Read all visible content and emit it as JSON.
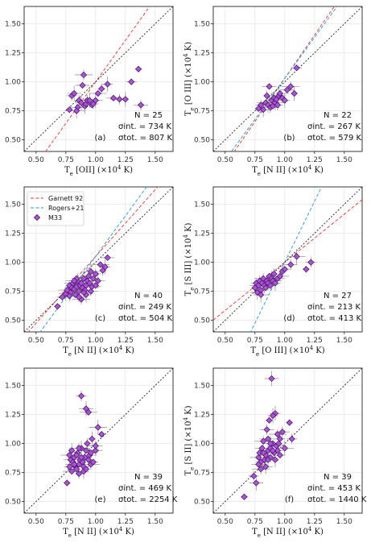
{
  "chart_data": [
    {
      "type": "scatter",
      "panel_label": "(a)",
      "xlabel": "T_e [OII] (×10^4 K)",
      "ylabel": "",
      "xlim": [
        0.4,
        1.65
      ],
      "ylim": [
        0.4,
        1.65
      ],
      "xticks": [
        "0.50",
        "0.75",
        "1.00",
        "1.25",
        "1.50"
      ],
      "yticks": [
        "0.50",
        "0.75",
        "1.00",
        "1.25",
        "1.50"
      ],
      "grid": true,
      "stats": {
        "n": "N = 25",
        "sigma_int": "σint. = 734 K",
        "sigma_tot": "σtot. = 807 K"
      },
      "relations": [
        {
          "name": "Garnett 92",
          "slope": 1.43,
          "intercept": -0.43,
          "color": "#e8372c"
        },
        {
          "name": "one-to-one",
          "slope": 1.0,
          "intercept": 0.0,
          "color": "#222222"
        }
      ],
      "series": [
        {
          "name": "M33",
          "points": [
            [
              0.78,
              0.76
            ],
            [
              0.8,
              0.88
            ],
            [
              0.82,
              0.9
            ],
            [
              0.85,
              0.78
            ],
            [
              0.86,
              0.84
            ],
            [
              0.88,
              0.82
            ],
            [
              0.89,
              0.97
            ],
            [
              0.9,
              1.06
            ],
            [
              0.91,
              0.79
            ],
            [
              0.92,
              0.81
            ],
            [
              0.93,
              0.84
            ],
            [
              0.95,
              0.84
            ],
            [
              0.97,
              0.8
            ],
            [
              0.98,
              0.81
            ],
            [
              1.0,
              0.84
            ],
            [
              1.02,
              0.9
            ],
            [
              1.05,
              0.94
            ],
            [
              1.1,
              0.98
            ],
            [
              1.15,
              0.86
            ],
            [
              1.2,
              0.85
            ],
            [
              1.25,
              0.85
            ],
            [
              1.3,
              1.0
            ],
            [
              1.38,
              0.8
            ],
            [
              0.84,
              0.75
            ],
            [
              1.36,
              1.11
            ]
          ]
        }
      ]
    },
    {
      "type": "scatter",
      "panel_label": "(b)",
      "xlabel": "T_e [N II] (×10^4 K)",
      "ylabel": "T_e [O III] (×10^4 K)",
      "xlim": [
        0.4,
        1.65
      ],
      "ylim": [
        0.4,
        1.65
      ],
      "xticks": [
        "0.50",
        "0.75",
        "1.00",
        "1.25",
        "1.50"
      ],
      "yticks": [
        "0.50",
        "0.75",
        "1.00",
        "1.25",
        "1.50"
      ],
      "grid": true,
      "stats": {
        "n": "N = 22",
        "sigma_int": "σint. = 267 K",
        "sigma_tot": "σtot. = 579 K"
      },
      "relations": [
        {
          "name": "Garnett 92",
          "slope": 1.49,
          "intercept": -0.46,
          "color": "#e8372c"
        },
        {
          "name": "Rogers+21",
          "slope": 1.41,
          "intercept": -0.38,
          "color": "#2b8fe6"
        },
        {
          "name": "one-to-one",
          "slope": 1.0,
          "intercept": 0.0,
          "color": "#222222"
        }
      ],
      "series": [
        {
          "name": "M33",
          "points": [
            [
              0.78,
              0.77
            ],
            [
              0.8,
              0.8
            ],
            [
              0.82,
              0.76
            ],
            [
              0.84,
              0.82
            ],
            [
              0.85,
              0.88
            ],
            [
              0.86,
              0.8
            ],
            [
              0.87,
              0.96
            ],
            [
              0.88,
              0.78
            ],
            [
              0.89,
              0.84
            ],
            [
              0.9,
              0.79
            ],
            [
              0.91,
              0.86
            ],
            [
              0.92,
              0.82
            ],
            [
              0.93,
              0.85
            ],
            [
              0.94,
              0.8
            ],
            [
              0.95,
              0.88
            ],
            [
              0.96,
              0.9
            ],
            [
              0.98,
              0.86
            ],
            [
              1.0,
              0.84
            ],
            [
              1.02,
              0.93
            ],
            [
              1.05,
              0.96
            ],
            [
              1.08,
              0.9
            ],
            [
              1.1,
              1.12
            ]
          ]
        }
      ]
    },
    {
      "type": "scatter",
      "panel_label": "(c)",
      "xlabel": "T_e [N II] (×10^4 K)",
      "ylabel": "",
      "xlim": [
        0.4,
        1.65
      ],
      "ylim": [
        0.4,
        1.65
      ],
      "xticks": [
        "0.50",
        "0.75",
        "1.00",
        "1.25",
        "1.50"
      ],
      "yticks": [
        "0.50",
        "0.75",
        "1.00",
        "1.25",
        "1.50"
      ],
      "grid": true,
      "legend": [
        "Garnett 92",
        "Rogers+21",
        "M33"
      ],
      "legend_position": "top-left",
      "stats": {
        "n": "N = 40",
        "sigma_int": "σint. = 249 K",
        "sigma_tot": "σtot. = 504 K"
      },
      "relations": [
        {
          "name": "Garnett 92",
          "slope": 1.15,
          "intercept": -0.1,
          "color": "#e8372c"
        },
        {
          "name": "Rogers+21",
          "slope": 1.4,
          "intercept": -0.35,
          "color": "#2b8fe6"
        },
        {
          "name": "one-to-one",
          "slope": 1.0,
          "intercept": 0.0,
          "color": "#222222"
        }
      ],
      "series": [
        {
          "name": "M33",
          "points": [
            [
              0.68,
              0.62
            ],
            [
              0.72,
              0.7
            ],
            [
              0.75,
              0.73
            ],
            [
              0.76,
              0.76
            ],
            [
              0.78,
              0.8
            ],
            [
              0.79,
              0.74
            ],
            [
              0.8,
              0.78
            ],
            [
              0.81,
              0.82
            ],
            [
              0.82,
              0.77
            ],
            [
              0.83,
              0.72
            ],
            [
              0.84,
              0.79
            ],
            [
              0.85,
              0.84
            ],
            [
              0.86,
              0.75
            ],
            [
              0.87,
              0.8
            ],
            [
              0.88,
              0.82
            ],
            [
              0.89,
              0.78
            ],
            [
              0.9,
              0.86
            ],
            [
              0.91,
              0.76
            ],
            [
              0.92,
              0.8
            ],
            [
              0.93,
              0.84
            ],
            [
              0.94,
              0.88
            ],
            [
              0.95,
              0.82
            ],
            [
              0.96,
              0.75
            ],
            [
              0.97,
              0.79
            ],
            [
              0.98,
              0.86
            ],
            [
              1.0,
              0.9
            ],
            [
              1.02,
              0.84
            ],
            [
              1.04,
              0.98
            ],
            [
              1.06,
              0.93
            ],
            [
              1.08,
              0.96
            ],
            [
              1.1,
              1.04
            ],
            [
              0.88,
              0.68
            ],
            [
              0.92,
              0.72
            ],
            [
              0.84,
              0.86
            ],
            [
              0.78,
              0.71
            ],
            [
              0.96,
              0.92
            ],
            [
              1.0,
              0.8
            ],
            [
              0.86,
              0.7
            ],
            [
              0.9,
              0.74
            ],
            [
              0.82,
              0.84
            ]
          ]
        }
      ]
    },
    {
      "type": "scatter",
      "panel_label": "(d)",
      "xlabel": "T_e [O III] (×10^4 K)",
      "ylabel": "T_e [S III] (×10^4 K)",
      "xlim": [
        0.4,
        1.65
      ],
      "ylim": [
        0.4,
        1.65
      ],
      "xticks": [
        "0.50",
        "0.75",
        "1.00",
        "1.25",
        "1.50"
      ],
      "yticks": [
        "0.50",
        "0.75",
        "1.00",
        "1.25",
        "1.50"
      ],
      "grid": true,
      "stats": {
        "n": "N = 27",
        "sigma_int": "σint. = 213 K",
        "sigma_tot": "σtot. = 413 K"
      },
      "relations": [
        {
          "name": "Garnett 92",
          "slope": 0.83,
          "intercept": 0.17,
          "color": "#e8372c"
        },
        {
          "name": "Rogers+21",
          "slope": 2.1,
          "intercept": -1.1,
          "color": "#2b8fe6"
        },
        {
          "name": "one-to-one",
          "slope": 1.0,
          "intercept": 0.0,
          "color": "#222222"
        }
      ],
      "series": [
        {
          "name": "M33",
          "points": [
            [
              0.75,
              0.78
            ],
            [
              0.76,
              0.82
            ],
            [
              0.77,
              0.74
            ],
            [
              0.78,
              0.8
            ],
            [
              0.79,
              0.84
            ],
            [
              0.8,
              0.76
            ],
            [
              0.81,
              0.82
            ],
            [
              0.82,
              0.86
            ],
            [
              0.83,
              0.8
            ],
            [
              0.84,
              0.78
            ],
            [
              0.85,
              0.84
            ],
            [
              0.86,
              0.82
            ],
            [
              0.87,
              0.88
            ],
            [
              0.88,
              0.8
            ],
            [
              0.89,
              0.86
            ],
            [
              0.9,
              0.84
            ],
            [
              0.91,
              0.9
            ],
            [
              0.92,
              0.82
            ],
            [
              0.94,
              0.86
            ],
            [
              0.96,
              0.88
            ],
            [
              0.98,
              0.92
            ],
            [
              1.0,
              0.94
            ],
            [
              1.05,
              0.98
            ],
            [
              1.1,
              1.05
            ],
            [
              1.18,
              0.94
            ],
            [
              1.22,
              1.0
            ],
            [
              0.8,
              0.72
            ]
          ]
        }
      ]
    },
    {
      "type": "scatter",
      "panel_label": "(e)",
      "xlabel": "T_e [N II] (×10^4 K)",
      "ylabel": "",
      "xlim": [
        0.4,
        1.65
      ],
      "ylim": [
        0.4,
        1.65
      ],
      "xticks": [
        "0.50",
        "0.75",
        "1.00",
        "1.25",
        "1.50"
      ],
      "yticks": [
        "0.50",
        "0.75",
        "1.00",
        "1.25",
        "1.50"
      ],
      "grid": true,
      "stats": {
        "n": "N = 39",
        "sigma_int": "σint. = 469 K",
        "sigma_tot": "σtot. = 2254 K"
      },
      "relations": [
        {
          "name": "one-to-one",
          "slope": 1.0,
          "intercept": 0.0,
          "color": "#222222"
        }
      ],
      "series": [
        {
          "name": "M33",
          "points": [
            [
              0.76,
              0.66
            ],
            [
              0.78,
              0.8
            ],
            [
              0.79,
              0.86
            ],
            [
              0.8,
              0.76
            ],
            [
              0.81,
              0.84
            ],
            [
              0.82,
              0.88
            ],
            [
              0.83,
              0.8
            ],
            [
              0.84,
              0.78
            ],
            [
              0.85,
              0.92
            ],
            [
              0.86,
              0.82
            ],
            [
              0.87,
              0.86
            ],
            [
              0.88,
              0.96
            ],
            [
              0.89,
              0.84
            ],
            [
              0.9,
              0.8
            ],
            [
              0.91,
              0.88
            ],
            [
              0.92,
              0.94
            ],
            [
              0.93,
              1.0
            ],
            [
              0.94,
              0.86
            ],
            [
              0.95,
              0.9
            ],
            [
              0.96,
              0.82
            ],
            [
              0.97,
              1.04
            ],
            [
              0.98,
              0.84
            ],
            [
              1.0,
              0.94
            ],
            [
              1.02,
              1.14
            ],
            [
              1.05,
              1.08
            ],
            [
              0.88,
              1.41
            ],
            [
              0.92,
              1.3
            ],
            [
              0.94,
              1.27
            ],
            [
              0.86,
              0.74
            ],
            [
              0.9,
              0.76
            ],
            [
              0.84,
              0.9
            ],
            [
              0.82,
              0.82
            ],
            [
              0.8,
              0.94
            ],
            [
              0.96,
              0.92
            ],
            [
              1.0,
              0.98
            ],
            [
              0.78,
              0.9
            ],
            [
              0.92,
              0.78
            ],
            [
              0.86,
              0.96
            ],
            [
              0.88,
              0.88
            ]
          ]
        }
      ]
    },
    {
      "type": "scatter",
      "panel_label": "(f)",
      "xlabel": "T_e [N II] (×10^4 K)",
      "ylabel": "T_e [S II] (×10^4 K)",
      "xlim": [
        0.4,
        1.65
      ],
      "ylim": [
        0.4,
        1.65
      ],
      "xticks": [
        "0.50",
        "0.75",
        "1.00",
        "1.25",
        "1.50"
      ],
      "yticks": [
        "0.50",
        "0.75",
        "1.00",
        "1.25",
        "1.50"
      ],
      "grid": true,
      "stats": {
        "n": "N = 39",
        "sigma_int": "σint. = 453 K",
        "sigma_tot": "σtot. = 1440 K"
      },
      "relations": [
        {
          "name": "one-to-one",
          "slope": 1.0,
          "intercept": 0.0,
          "color": "#222222"
        }
      ],
      "series": [
        {
          "name": "M33",
          "points": [
            [
              0.66,
              0.54
            ],
            [
              0.74,
              0.72
            ],
            [
              0.76,
              0.66
            ],
            [
              0.78,
              0.88
            ],
            [
              0.79,
              0.92
            ],
            [
              0.8,
              0.84
            ],
            [
              0.81,
              0.96
            ],
            [
              0.82,
              1.02
            ],
            [
              0.83,
              0.86
            ],
            [
              0.84,
              0.9
            ],
            [
              0.85,
              1.12
            ],
            [
              0.86,
              0.94
            ],
            [
              0.87,
              1.2
            ],
            [
              0.88,
              0.88
            ],
            [
              0.89,
              1.56
            ],
            [
              0.9,
              1.0
            ],
            [
              0.91,
              0.92
            ],
            [
              0.92,
              1.26
            ],
            [
              0.93,
              0.98
            ],
            [
              0.94,
              1.08
            ],
            [
              0.95,
              1.0
            ],
            [
              0.96,
              0.9
            ],
            [
              0.98,
              1.1
            ],
            [
              1.0,
              0.96
            ],
            [
              1.04,
              1.18
            ],
            [
              1.06,
              1.04
            ],
            [
              0.84,
              0.8
            ],
            [
              0.86,
              1.04
            ],
            [
              0.88,
              0.96
            ],
            [
              0.9,
              1.24
            ],
            [
              0.82,
              0.92
            ],
            [
              0.8,
              0.78
            ],
            [
              0.92,
              0.86
            ],
            [
              0.94,
              0.94
            ],
            [
              0.78,
              0.82
            ],
            [
              0.86,
              0.86
            ],
            [
              0.9,
              0.94
            ],
            [
              0.96,
              1.04
            ],
            [
              0.88,
              1.0
            ]
          ]
        }
      ]
    }
  ]
}
